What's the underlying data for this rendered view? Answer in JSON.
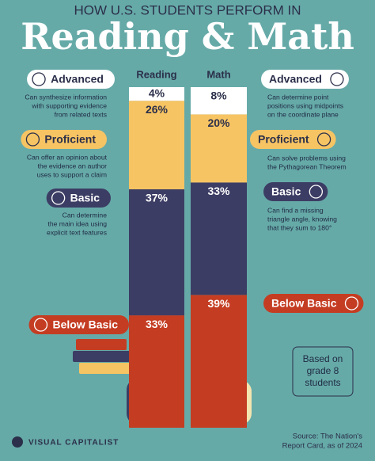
{
  "header": {
    "kicker": "HOW U.S. STUDENTS PERFORM IN",
    "title": "Reading & Math"
  },
  "chart_data": {
    "type": "stacked_bar",
    "categories": [
      "Reading",
      "Math"
    ],
    "series": [
      {
        "name": "Advanced",
        "color": "#ffffff",
        "values": [
          4,
          8
        ],
        "value_labels": [
          "4%",
          "8%"
        ]
      },
      {
        "name": "Proficient",
        "color": "#f7c463",
        "values": [
          26,
          20
        ],
        "value_labels": [
          "26%",
          "20%"
        ]
      },
      {
        "name": "Basic",
        "color": "#3c3d64",
        "values": [
          37,
          33
        ],
        "value_labels": [
          "37%",
          "33%"
        ]
      },
      {
        "name": "Below Basic",
        "color": "#c43d22",
        "values": [
          33,
          39
        ],
        "value_labels": [
          "33%",
          "39%"
        ]
      }
    ]
  },
  "descriptions": {
    "Reading": [
      [
        "Can synthesize information",
        "with supporting evidence",
        "from related texts"
      ],
      [
        "Can offer an opinion about",
        "the evidence an author",
        "uses to support a claim"
      ],
      [
        "Can determine",
        "the main idea using",
        "explicit text features"
      ]
    ],
    "Math": [
      [
        "Can determine point",
        "positions using midpoints",
        "on the coordinate plane"
      ],
      [
        "Can solve problems using",
        "the Pythagorean Theorem"
      ],
      [
        "Can find a missing",
        "triangle angle, knowing",
        "that they sum to 180°"
      ]
    ]
  },
  "note": [
    "Based on",
    "grade 8",
    "students"
  ],
  "footer": {
    "brand": "VISUAL CAPITALIST",
    "source": [
      "Source: The Nation's",
      "Report Card, as of 2024"
    ]
  }
}
